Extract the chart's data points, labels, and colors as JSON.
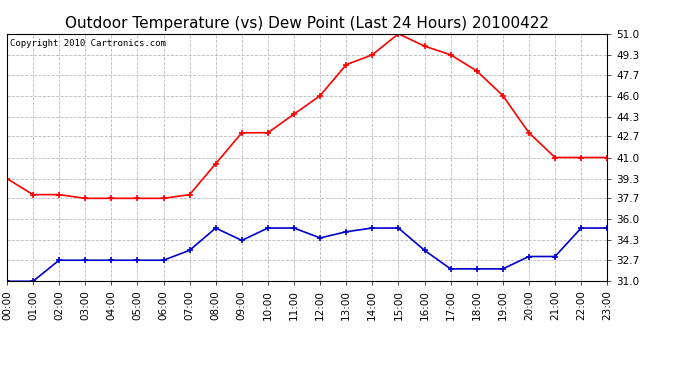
{
  "title": "Outdoor Temperature (vs) Dew Point (Last 24 Hours) 20100422",
  "copyright": "Copyright 2010 Cartronics.com",
  "hours": [
    0,
    1,
    2,
    3,
    4,
    5,
    6,
    7,
    8,
    9,
    10,
    11,
    12,
    13,
    14,
    15,
    16,
    17,
    18,
    19,
    20,
    21,
    22,
    23
  ],
  "hour_labels": [
    "00:00",
    "01:00",
    "02:00",
    "03:00",
    "04:00",
    "05:00",
    "06:00",
    "07:00",
    "08:00",
    "09:00",
    "10:00",
    "11:00",
    "12:00",
    "13:00",
    "14:00",
    "15:00",
    "16:00",
    "17:00",
    "18:00",
    "19:00",
    "20:00",
    "21:00",
    "22:00",
    "23:00"
  ],
  "temp": [
    39.3,
    38.0,
    38.0,
    37.7,
    37.7,
    37.7,
    37.7,
    38.0,
    40.5,
    43.0,
    43.0,
    44.5,
    46.0,
    48.5,
    49.3,
    51.0,
    50.0,
    49.3,
    48.0,
    46.0,
    43.0,
    41.0,
    41.0,
    41.0
  ],
  "dew": [
    31.0,
    31.0,
    32.7,
    32.7,
    32.7,
    32.7,
    32.7,
    33.5,
    35.3,
    34.3,
    35.3,
    35.3,
    34.5,
    35.0,
    35.3,
    35.3,
    33.5,
    32.0,
    32.0,
    32.0,
    33.0,
    33.0,
    35.3,
    35.3
  ],
  "temp_color": "#ff0000",
  "dew_color": "#0000cc",
  "bg_color": "#ffffff",
  "plot_bg": "#ffffff",
  "grid_color": "#bbbbbb",
  "ylim": [
    31.0,
    51.0
  ],
  "yticks": [
    31.0,
    32.7,
    34.3,
    36.0,
    37.7,
    39.3,
    41.0,
    42.7,
    44.3,
    46.0,
    47.7,
    49.3,
    51.0
  ],
  "title_fontsize": 11,
  "copyright_fontsize": 6.5,
  "tick_fontsize": 7.5,
  "marker_size": 4,
  "line_width": 1.2
}
